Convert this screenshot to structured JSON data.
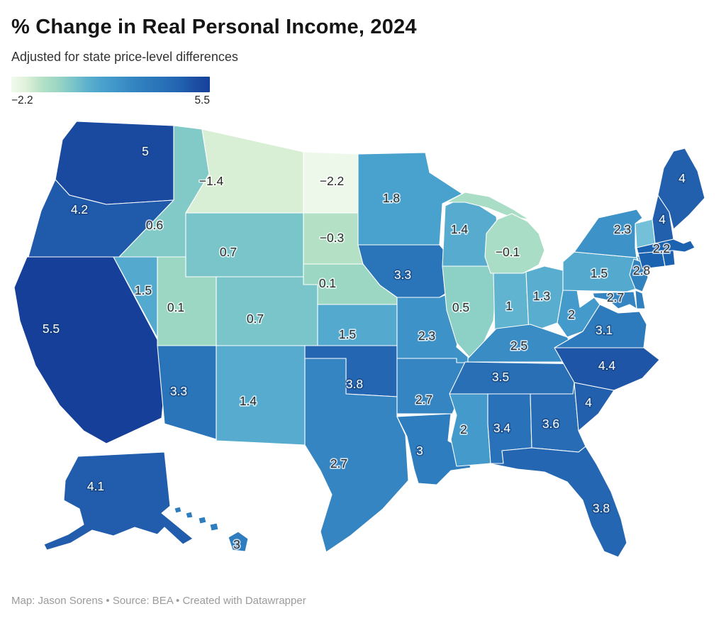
{
  "header": {
    "title": "% Change in Real Personal Income, 2024",
    "subtitle": "Adjusted for state price-level differences"
  },
  "legend": {
    "min_label": "−2.2",
    "max_label": "5.5",
    "gradient": [
      "#f2faee",
      "#ddf1d8",
      "#b5e1c7",
      "#9cd6c4",
      "#7cc6c9",
      "#5cb0cd",
      "#49a1cc",
      "#3e94c8",
      "#3485c1",
      "#2d7abc",
      "#2870b7",
      "#2263b1",
      "#1c4fa3",
      "#16419b"
    ]
  },
  "footer": {
    "credit": "Map: Jason Sorens • Source: BEA • Created with Datawrapper"
  },
  "chart_data": {
    "type": "choropleth",
    "title": "% Change in Real Personal Income, 2024",
    "subtitle": "Adjusted for state price-level differences",
    "unit": "%",
    "scale_domain": [
      -2.2,
      5.5
    ],
    "legend_position": "top-left",
    "states": [
      {
        "id": "WA",
        "name": "Washington",
        "label": "5",
        "value": 5.0,
        "fill": "#1a4a9f",
        "label_color": "light"
      },
      {
        "id": "OR",
        "name": "Oregon",
        "label": "4.2",
        "value": 4.2,
        "fill": "#205aab",
        "label_color": "light"
      },
      {
        "id": "CA",
        "name": "California",
        "label": "5.5",
        "value": 5.5,
        "fill": "#153f99",
        "label_color": "light"
      },
      {
        "id": "NV",
        "name": "Nevada",
        "label": "1.5",
        "value": 1.5,
        "fill": "#53a9ce",
        "label_color": "dark"
      },
      {
        "id": "ID",
        "name": "Idaho",
        "label": "0.6",
        "value": 0.6,
        "fill": "#82cac8",
        "label_color": "dark"
      },
      {
        "id": "MT",
        "name": "Montana",
        "label": "−1.4",
        "value": -1.4,
        "fill": "#d9efd5",
        "label_color": "dark"
      },
      {
        "id": "WY",
        "name": "Wyoming",
        "label": "0.7",
        "value": 0.7,
        "fill": "#79c5c9",
        "label_color": "dark"
      },
      {
        "id": "UT",
        "name": "Utah",
        "label": "0.1",
        "value": 0.1,
        "fill": "#9cd7c4",
        "label_color": "dark"
      },
      {
        "id": "CO",
        "name": "Colorado",
        "label": "0.7",
        "value": 0.7,
        "fill": "#79c5c9",
        "label_color": "dark"
      },
      {
        "id": "AZ",
        "name": "Arizona",
        "label": "3.3",
        "value": 3.3,
        "fill": "#2a74b9",
        "label_color": "light"
      },
      {
        "id": "NM",
        "name": "New Mexico",
        "label": "1.4",
        "value": 1.4,
        "fill": "#56abce",
        "label_color": "dark"
      },
      {
        "id": "ND",
        "name": "North Dakota",
        "label": "−2.2",
        "value": -2.2,
        "fill": "#edf8ea",
        "label_color": "dark"
      },
      {
        "id": "SD",
        "name": "South Dakota",
        "label": "−0.3",
        "value": -0.3,
        "fill": "#b4e0c6",
        "label_color": "dark"
      },
      {
        "id": "NE",
        "name": "Nebraska",
        "label": "0.1",
        "value": 0.1,
        "fill": "#9cd7c4",
        "label_color": "dark"
      },
      {
        "id": "KS",
        "name": "Kansas",
        "label": "1.5",
        "value": 1.5,
        "fill": "#53a9ce",
        "label_color": "dark"
      },
      {
        "id": "OK",
        "name": "Oklahoma",
        "label": "3.8",
        "value": 3.8,
        "fill": "#2466b2",
        "label_color": "light"
      },
      {
        "id": "TX",
        "name": "Texas",
        "label": "2.7",
        "value": 2.7,
        "fill": "#3485c1",
        "label_color": "dark"
      },
      {
        "id": "MN",
        "name": "Minnesota",
        "label": "1.8",
        "value": 1.8,
        "fill": "#49a1cd",
        "label_color": "dark"
      },
      {
        "id": "IA",
        "name": "Iowa",
        "label": "3.3",
        "value": 3.3,
        "fill": "#2a74b9",
        "label_color": "light"
      },
      {
        "id": "MO",
        "name": "Missouri",
        "label": "2.3",
        "value": 2.3,
        "fill": "#3d92c7",
        "label_color": "dark"
      },
      {
        "id": "AR",
        "name": "Arkansas",
        "label": "2.7",
        "value": 2.7,
        "fill": "#3485c1",
        "label_color": "dark"
      },
      {
        "id": "LA",
        "name": "Louisiana",
        "label": "3",
        "value": 3.0,
        "fill": "#2e7dbe",
        "label_color": "light"
      },
      {
        "id": "WI",
        "name": "Wisconsin",
        "label": "1.4",
        "value": 1.4,
        "fill": "#56abce",
        "label_color": "dark"
      },
      {
        "id": "IL",
        "name": "Illinois",
        "label": "0.5",
        "value": 0.5,
        "fill": "#8dd0c6",
        "label_color": "dark"
      },
      {
        "id": "IN",
        "name": "Indiana",
        "label": "1",
        "value": 1.0,
        "fill": "#60b4cf",
        "label_color": "dark"
      },
      {
        "id": "MI",
        "name": "Michigan",
        "label": "−0.1",
        "value": -0.1,
        "fill": "#aaddc6",
        "label_color": "dark"
      },
      {
        "id": "MIUP",
        "name": "Michigan Upper Peninsula",
        "label": "",
        "value": -0.1,
        "fill": "#aaddc6",
        "label_color": "dark"
      },
      {
        "id": "OH",
        "name": "Ohio",
        "label": "1.3",
        "value": 1.3,
        "fill": "#59aecf",
        "label_color": "dark"
      },
      {
        "id": "KY",
        "name": "Kentucky",
        "label": "2.5",
        "value": 2.5,
        "fill": "#398cc4",
        "label_color": "dark"
      },
      {
        "id": "TN",
        "name": "Tennessee",
        "label": "3.5",
        "value": 3.5,
        "fill": "#286fb6",
        "label_color": "light"
      },
      {
        "id": "MS",
        "name": "Mississippi",
        "label": "2",
        "value": 2.0,
        "fill": "#449bcb",
        "label_color": "dark"
      },
      {
        "id": "AL",
        "name": "Alabama",
        "label": "3.4",
        "value": 3.4,
        "fill": "#2971b8",
        "label_color": "light"
      },
      {
        "id": "GA",
        "name": "Georgia",
        "label": "3.6",
        "value": 3.6,
        "fill": "#276cb5",
        "label_color": "light"
      },
      {
        "id": "FL",
        "name": "Florida",
        "label": "3.8",
        "value": 3.8,
        "fill": "#2466b2",
        "label_color": "light"
      },
      {
        "id": "SC",
        "name": "South Carolina",
        "label": "4",
        "value": 4.0,
        "fill": "#2260ae",
        "label_color": "light"
      },
      {
        "id": "NC",
        "name": "North Carolina",
        "label": "4.4",
        "value": 4.4,
        "fill": "#1e55a7",
        "label_color": "light"
      },
      {
        "id": "VA",
        "name": "Virginia",
        "label": "3.1",
        "value": 3.1,
        "fill": "#2d7abc",
        "label_color": "light"
      },
      {
        "id": "WV",
        "name": "West Virginia",
        "label": "2",
        "value": 2.0,
        "fill": "#449bcb",
        "label_color": "dark"
      },
      {
        "id": "PA",
        "name": "Pennsylvania",
        "label": "1.5",
        "value": 1.5,
        "fill": "#53a9ce",
        "label_color": "dark"
      },
      {
        "id": "NY",
        "name": "New York",
        "label": "2.3",
        "value": 2.3,
        "fill": "#3d92c7",
        "label_color": "dark"
      },
      {
        "id": "NJ",
        "name": "New Jersey",
        "label": "2.8",
        "value": 2.8,
        "fill": "#3282c0",
        "label_color": "dark"
      },
      {
        "id": "MD",
        "name": "Maryland",
        "label": "2.7",
        "value": 2.7,
        "fill": "#3485c1",
        "label_color": "dark"
      },
      {
        "id": "DE",
        "name": "Delaware",
        "label": "",
        "value": null,
        "fill": "#3080bf",
        "label_color": "dark"
      },
      {
        "id": "ME",
        "name": "Maine",
        "label": "4",
        "value": 4.0,
        "fill": "#2260ae",
        "label_color": "light"
      },
      {
        "id": "NH",
        "name": "New Hampshire",
        "label": "4",
        "value": 4.0,
        "fill": "#2260ae",
        "label_color": "light"
      },
      {
        "id": "VT",
        "name": "Vermont",
        "label": "",
        "value": null,
        "fill": "#74c0d9",
        "label_color": "dark"
      },
      {
        "id": "MA",
        "name": "Massachusetts",
        "label": "2.2",
        "value": 2.2,
        "fill": "#1b62b0",
        "label_color": "dark"
      },
      {
        "id": "CT",
        "name": "Connecticut",
        "label": "",
        "value": null,
        "fill": "#1b62b0",
        "label_color": "dark"
      },
      {
        "id": "RI",
        "name": "Rhode Island",
        "label": "",
        "value": null,
        "fill": "#1b62b0",
        "label_color": "dark"
      },
      {
        "id": "AK",
        "name": "Alaska",
        "label": "4.1",
        "value": 4.1,
        "fill": "#215dac",
        "label_color": "light"
      },
      {
        "id": "HI",
        "name": "Hawaii",
        "label": "3",
        "value": 3.0,
        "fill": "#2e7dbe",
        "label_color": "dark"
      },
      {
        "id": "HI2",
        "name": "Hawaii island",
        "label": "",
        "value": 3.0,
        "fill": "#2e7dbe",
        "label_color": "dark"
      },
      {
        "id": "HI3",
        "name": "Hawaii island",
        "label": "",
        "value": 3.0,
        "fill": "#2e7dbe",
        "label_color": "dark"
      },
      {
        "id": "HI4",
        "name": "Hawaii island",
        "label": "",
        "value": 3.0,
        "fill": "#2e7dbe",
        "label_color": "dark"
      },
      {
        "id": "HI5",
        "name": "Hawaii island",
        "label": "",
        "value": 3.0,
        "fill": "#2e7dbe",
        "label_color": "dark"
      }
    ]
  }
}
